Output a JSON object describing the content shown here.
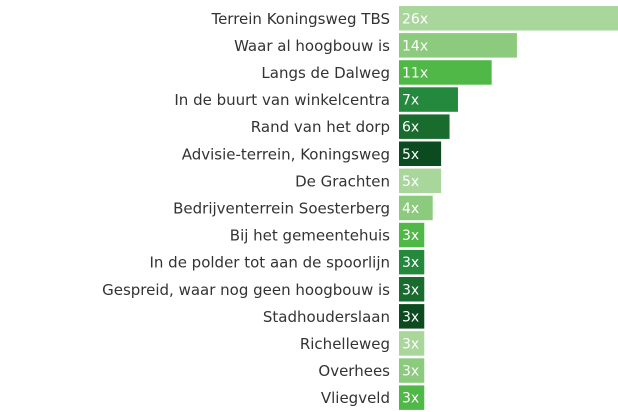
{
  "chart_data": {
    "type": "barh",
    "categories": [
      "Terrein Koningsweg TBS",
      "Waar al hoogbouw is",
      "Langs de Dalweg",
      "In de buurt van winkelcentra",
      "Rand van het dorp",
      "Advisie-terrein, Koningsweg",
      "De Grachten",
      "Bedrijventerrein Soesterberg",
      "Bij het gemeentehuis",
      "In de polder tot aan de spoorlijn",
      "Gespreid, waar nog geen hoogbouw is",
      "Stadhouderslaan",
      "Richelleweg",
      "Overhees",
      "Vliegveld"
    ],
    "values": [
      26,
      14,
      11,
      7,
      6,
      5,
      5,
      4,
      3,
      3,
      3,
      3,
      3,
      3,
      3
    ],
    "value_labels": [
      "26x",
      "14x",
      "11x",
      "7x",
      "6x",
      "5x",
      "5x",
      "4x",
      "3x",
      "3x",
      "3x",
      "3x",
      "3x",
      "3x",
      "3x"
    ],
    "colors": [
      "#a9d69b",
      "#8ccb7d",
      "#4fb847",
      "#24893c",
      "#1a6b2e",
      "#0c4a20",
      "#a9d69b",
      "#8ccb7d",
      "#4fb847",
      "#24893c",
      "#1a6b2e",
      "#0c4a20",
      "#a9d69b",
      "#8ccb7d",
      "#4fb847"
    ]
  }
}
